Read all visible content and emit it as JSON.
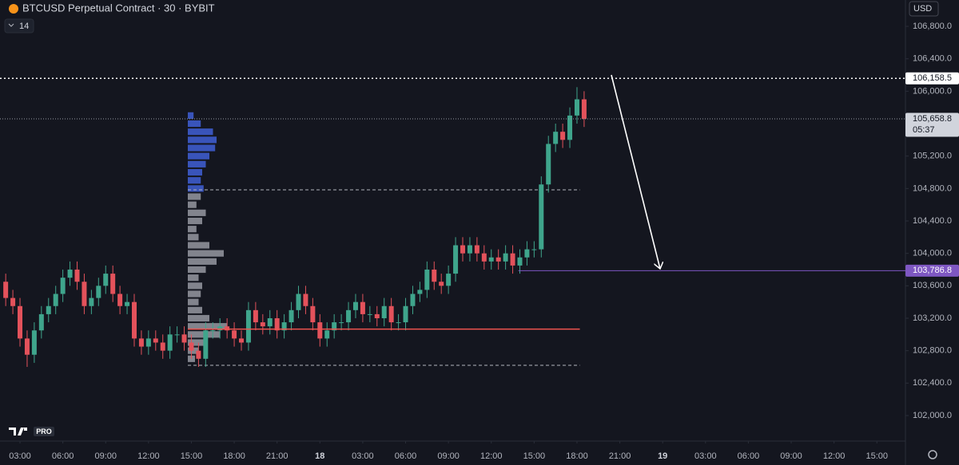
{
  "chart_data": {
    "type": "candlestick",
    "title": "BTCUSD Perpetual Contract · 30 · BYBIT",
    "indicator_label": "14",
    "currency": "USD",
    "logo_text": "PRO",
    "up_color": "#3fa58c",
    "down_color": "#e3525b",
    "xlim": [
      1.6,
      65
    ],
    "xticks": [
      {
        "value": 3,
        "label": "03:00"
      },
      {
        "value": 6,
        "label": "06:00"
      },
      {
        "value": 9,
        "label": "09:00"
      },
      {
        "value": 12,
        "label": "12:00"
      },
      {
        "value": 15,
        "label": "15:00"
      },
      {
        "value": 18,
        "label": "18:00"
      },
      {
        "value": 21,
        "label": "21:00"
      },
      {
        "value": 24,
        "label": "18"
      },
      {
        "value": 27,
        "label": "03:00"
      },
      {
        "value": 30,
        "label": "06:00"
      },
      {
        "value": 33,
        "label": "09:00"
      },
      {
        "value": 36,
        "label": "12:00"
      },
      {
        "value": 39,
        "label": "15:00"
      },
      {
        "value": 42,
        "label": "18:00"
      },
      {
        "value": 45,
        "label": "21:00"
      },
      {
        "value": 48,
        "label": "19"
      },
      {
        "value": 51,
        "label": "03:00"
      },
      {
        "value": 54,
        "label": "06:00"
      },
      {
        "value": 57,
        "label": "09:00"
      },
      {
        "value": 60,
        "label": "12:00"
      },
      {
        "value": 63,
        "label": "15:00"
      }
    ],
    "ylim": [
      101685,
      107125
    ],
    "yticks": [
      {
        "value": 102000,
        "label": "102,000.0"
      },
      {
        "value": 102400,
        "label": "102,400.0"
      },
      {
        "value": 102800,
        "label": "102,800.0"
      },
      {
        "value": 103200,
        "label": "103,200.0"
      },
      {
        "value": 103600,
        "label": "103,600.0"
      },
      {
        "value": 104000,
        "label": "104,000.0"
      },
      {
        "value": 104400,
        "label": "104,400.0"
      },
      {
        "value": 104800,
        "label": "104,800.0"
      },
      {
        "value": 105200,
        "label": "105,200.0"
      },
      {
        "value": 105600,
        "label": "105,600.0"
      },
      {
        "value": 106000,
        "label": "106,000.0"
      },
      {
        "value": 106400,
        "label": "106,400.0"
      },
      {
        "value": 106800,
        "label": "106,800.0"
      }
    ],
    "x": [
      2,
      2.5,
      3,
      3.5,
      4,
      4.5,
      5,
      5.5,
      6,
      6.5,
      7,
      7.5,
      8,
      8.5,
      9,
      9.5,
      10,
      10.5,
      11,
      11.5,
      12,
      12.5,
      13,
      13.5,
      14,
      14.5,
      15,
      15.5,
      16,
      16.5,
      17,
      17.5,
      18,
      18.5,
      19,
      19.5,
      20,
      20.5,
      21,
      21.5,
      22,
      22.5,
      23,
      23.5,
      24,
      24.5,
      25,
      25.5,
      26,
      26.5,
      27,
      27.5,
      28,
      28.5,
      29,
      29.5,
      30,
      30.5,
      31,
      31.5,
      32,
      32.5,
      33,
      33.5,
      34,
      34.5,
      35,
      35.5,
      36,
      36.5,
      37,
      37.5,
      38,
      38.5,
      39,
      39.5,
      40,
      40.5,
      41,
      41.5,
      42,
      42.5
    ],
    "open": [
      103650,
      103450,
      103350,
      102950,
      102750,
      103050,
      103250,
      103350,
      103500,
      103700,
      103800,
      103650,
      103350,
      103450,
      103600,
      103750,
      103500,
      103350,
      103400,
      102950,
      102850,
      102950,
      102900,
      102800,
      103000,
      103000,
      102900,
      102800,
      102700,
      103050,
      103050,
      103100,
      103050,
      102950,
      102900,
      103300,
      103150,
      103100,
      103200,
      103050,
      103150,
      103300,
      103500,
      103350,
      103150,
      102950,
      103050,
      103150,
      103150,
      103300,
      103400,
      103250,
      103250,
      103200,
      103350,
      103150,
      103150,
      103350,
      103500,
      103550,
      103800,
      103650,
      103600,
      103750,
      104100,
      104000,
      104100,
      104000,
      103900,
      103950,
      103900,
      104000,
      103850,
      103950,
      104050,
      104050,
      104850,
      105350,
      105500,
      105400,
      105700,
      105900
    ],
    "high": [
      103750,
      103550,
      103450,
      103050,
      103150,
      103350,
      103450,
      103600,
      103800,
      103900,
      103900,
      103750,
      103550,
      103700,
      103850,
      103850,
      103600,
      103500,
      103500,
      103050,
      103050,
      103050,
      103000,
      103100,
      103100,
      103100,
      103000,
      102900,
      103150,
      103150,
      103200,
      103200,
      103150,
      103050,
      103400,
      103400,
      103250,
      103300,
      103300,
      103250,
      103400,
      103600,
      103600,
      103450,
      103250,
      103150,
      103250,
      103250,
      103400,
      103500,
      103500,
      103350,
      103350,
      103450,
      103450,
      103250,
      103450,
      103600,
      103650,
      103900,
      103900,
      103750,
      103850,
      104200,
      104200,
      104200,
      104200,
      104100,
      104050,
      104050,
      104100,
      104100,
      104050,
      104150,
      104150,
      104950,
      105450,
      105600,
      105600,
      105800,
      106050,
      106000
    ],
    "low": [
      103350,
      103250,
      102850,
      102600,
      102650,
      102950,
      103150,
      103250,
      103400,
      103600,
      103550,
      103250,
      103250,
      103350,
      103500,
      103400,
      103250,
      103250,
      102850,
      102750,
      102750,
      102800,
      102700,
      102700,
      102900,
      102800,
      102700,
      102600,
      102600,
      102950,
      102950,
      102950,
      102850,
      102800,
      102800,
      103050,
      103000,
      103000,
      102950,
      102950,
      103050,
      103200,
      103250,
      103050,
      102850,
      102850,
      102950,
      103050,
      103050,
      103200,
      103150,
      103150,
      103100,
      103100,
      103050,
      103050,
      103050,
      103250,
      103400,
      103450,
      103550,
      103500,
      103500,
      103650,
      103900,
      103900,
      103900,
      103800,
      103800,
      103800,
      103800,
      103750,
      103750,
      103850,
      103950,
      103950,
      104750,
      105250,
      105300,
      105300,
      105600,
      105559
    ],
    "close": [
      103450,
      103350,
      102950,
      102750,
      103050,
      103250,
      103350,
      103500,
      103700,
      103800,
      103650,
      103350,
      103450,
      103600,
      103750,
      103500,
      103350,
      103400,
      102950,
      102850,
      102950,
      102900,
      102800,
      103000,
      103000,
      102900,
      102800,
      102700,
      103050,
      103050,
      103100,
      103050,
      102950,
      102900,
      103300,
      103150,
      103100,
      103200,
      103050,
      103150,
      103300,
      103500,
      103350,
      103150,
      102950,
      103050,
      103150,
      103150,
      103300,
      103400,
      103250,
      103250,
      103200,
      103350,
      103150,
      103150,
      103350,
      103500,
      103550,
      103800,
      103650,
      103600,
      103750,
      104100,
      104000,
      104100,
      104000,
      103900,
      103950,
      103900,
      104000,
      103850,
      103950,
      104050,
      104050,
      104850,
      105350,
      105500,
      105400,
      105700,
      105900,
      105659
    ],
    "price_lines": [
      {
        "value": 106158.5,
        "label": "106,158.5",
        "color": "#ffffff",
        "label_bg": "#ffffff",
        "label_color": "#131722",
        "style": "dotted"
      },
      {
        "value": 105658.8,
        "label": "105,658.8",
        "countdown": "05:37",
        "color": "#9598a1",
        "label_bg": "#d1d4dc",
        "label_color": "#131722",
        "style": "dotted-thin"
      },
      {
        "value": 103786.8,
        "label": "103,786.8",
        "color": "#7e57c2",
        "label_bg": "#7e57c2",
        "label_color": "#ffffff",
        "style": "solid",
        "from": 37.9
      }
    ],
    "volume_profile": {
      "start": 14.75,
      "end": 42.2,
      "value_area_high": 104784,
      "value_area_low": 102620,
      "poc": 103066,
      "value_area_color": "#3f5fd6",
      "color": "#9598a1",
      "poc_color": "#f0544f",
      "prices": [
        102700,
        102800,
        102900,
        103000,
        103100,
        103200,
        103300,
        103400,
        103500,
        103600,
        103700,
        103800,
        103900,
        104000,
        104100,
        104200,
        104300,
        104400,
        104500,
        104600,
        104700,
        104800,
        104900,
        105000,
        105100,
        105200,
        105300,
        105400,
        105500,
        105600,
        105700
      ],
      "volumes": [
        10,
        15,
        25,
        45,
        55,
        30,
        20,
        15,
        18,
        20,
        15,
        25,
        40,
        50,
        30,
        15,
        12,
        20,
        25,
        12,
        18,
        22,
        18,
        20,
        25,
        30,
        38,
        40,
        35,
        18,
        8
      ]
    }
  }
}
